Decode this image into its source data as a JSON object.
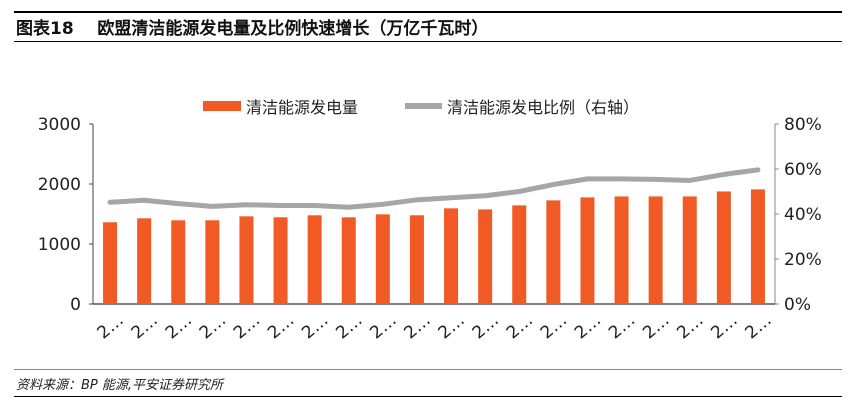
{
  "header": {
    "title": "图表18    欧盟清洁能源发电量及比例快速增长（万亿千瓦时）"
  },
  "footer": {
    "source": "资料来源：BP 能源,平安证券研究所"
  },
  "chart_data": {
    "type": "bar+line",
    "categories": [
      "2…",
      "2…",
      "2…",
      "2…",
      "2…",
      "2…",
      "2…",
      "2…",
      "2…",
      "2…",
      "2…",
      "2…",
      "2…",
      "2…",
      "2…",
      "2…",
      "2…",
      "2…",
      "2…",
      "2…"
    ],
    "series": [
      {
        "name": "清洁能源发电量",
        "type": "bar",
        "axis": "left",
        "color": "#F15A24",
        "values": [
          1362,
          1428,
          1395,
          1395,
          1461,
          1445,
          1478,
          1445,
          1494,
          1478,
          1594,
          1577,
          1644,
          1727,
          1777,
          1793,
          1793,
          1793,
          1876,
          1910
        ]
      },
      {
        "name": "清洁能源发电比例（右轴）",
        "type": "line",
        "axis": "right",
        "color": "#A6A6A6",
        "values": [
          45.2,
          46.1,
          44.6,
          43.4,
          44.1,
          43.8,
          43.8,
          43.0,
          44.3,
          46.3,
          47.2,
          48.1,
          50.0,
          53.1,
          55.6,
          55.6,
          55.4,
          54.9,
          57.6,
          59.6
        ]
      }
    ],
    "left_axis": {
      "ylim": [
        0,
        3000
      ],
      "ticks": [
        "0",
        "1000",
        "2000",
        "3000"
      ]
    },
    "right_axis": {
      "ylim": [
        0,
        80
      ],
      "ticks": [
        "0%",
        "20%",
        "40%",
        "60%",
        "80%"
      ]
    },
    "legend": "top-center",
    "grid": false
  }
}
